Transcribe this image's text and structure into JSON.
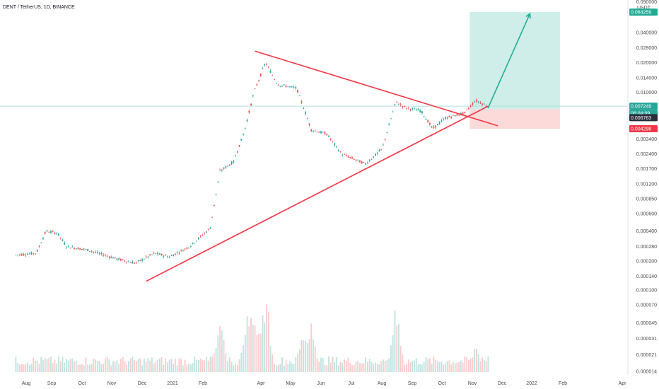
{
  "header": {
    "symbol_line": "DENT / TetherUS, 1D, BINANCE"
  },
  "colors": {
    "up": "#26a69a",
    "down": "#ef5350",
    "trendline": "#f23645",
    "target_zone": "#c7ebe5",
    "stop_zone": "#fbd4d4",
    "arrow": "#22ab94",
    "price_line": "#b2dfdb",
    "axis_text": "#4a4a4a"
  },
  "chart_data": {
    "type": "candlestick",
    "scale": "log",
    "y_unit_label": "USDT",
    "y_ticks": [
      "0.090000",
      "0.064259",
      "0.040000",
      "0.028000",
      "0.020000",
      "0.014000",
      "0.010000",
      "0.007249",
      "0.006763",
      "0.004298",
      "0.003400",
      "0.002400",
      "0.001700",
      "0.001200",
      "0.000850",
      "0.000600",
      "0.000400",
      "0.000280",
      "0.000200",
      "0.000140",
      "0.000100",
      "0.000070",
      "0.000045",
      "0.000031",
      "0.000021",
      "0.000014"
    ],
    "x_ticks": [
      "Aug",
      "Sep",
      "Oct",
      "Nov",
      "Dec",
      "2021",
      "Feb",
      "Apr",
      "May",
      "Jun",
      "Jul",
      "Aug",
      "Sep",
      "Oct",
      "Nov",
      "Dec",
      "2022",
      "Feb",
      "Apr"
    ],
    "price_badges": [
      {
        "label": "0.064259",
        "role": "target",
        "color": "#22ab94"
      },
      {
        "label": "0.007249",
        "role": "last-price",
        "color": "#26a69a"
      },
      {
        "label": "06:04:09",
        "role": "countdown",
        "color": "#26a69a"
      },
      {
        "label": "0.006763",
        "role": "entry",
        "color": "#2a2e39"
      },
      {
        "label": "0.004298",
        "role": "stop",
        "color": "#f23645"
      }
    ],
    "price_path": [
      {
        "d": "2020-07-20",
        "p": 0.00023
      },
      {
        "d": "2020-08-10",
        "p": 0.00024
      },
      {
        "d": "2020-08-20",
        "p": 0.0004
      },
      {
        "d": "2020-09-01",
        "p": 0.00038
      },
      {
        "d": "2020-09-10",
        "p": 0.00028
      },
      {
        "d": "2020-10-01",
        "p": 0.00026
      },
      {
        "d": "2020-11-01",
        "p": 0.00021
      },
      {
        "d": "2020-11-20",
        "p": 0.00019
      },
      {
        "d": "2020-12-10",
        "p": 0.00024
      },
      {
        "d": "2020-12-25",
        "p": 0.00022
      },
      {
        "d": "2021-01-15",
        "p": 0.00028
      },
      {
        "d": "2021-02-05",
        "p": 0.00043
      },
      {
        "d": "2021-02-15",
        "p": 0.0016
      },
      {
        "d": "2021-03-01",
        "p": 0.002
      },
      {
        "d": "2021-03-12",
        "p": 0.004
      },
      {
        "d": "2021-03-22",
        "p": 0.01
      },
      {
        "d": "2021-04-03",
        "p": 0.02
      },
      {
        "d": "2021-04-15",
        "p": 0.012
      },
      {
        "d": "2021-05-05",
        "p": 0.011
      },
      {
        "d": "2021-05-20",
        "p": 0.0042
      },
      {
        "d": "2021-06-05",
        "p": 0.0038
      },
      {
        "d": "2021-06-20",
        "p": 0.0024
      },
      {
        "d": "2021-07-15",
        "p": 0.0019
      },
      {
        "d": "2021-08-01",
        "p": 0.0027
      },
      {
        "d": "2021-08-15",
        "p": 0.008
      },
      {
        "d": "2021-08-25",
        "p": 0.007
      },
      {
        "d": "2021-09-10",
        "p": 0.0065
      },
      {
        "d": "2021-09-22",
        "p": 0.0043
      },
      {
        "d": "2021-10-05",
        "p": 0.0055
      },
      {
        "d": "2021-10-25",
        "p": 0.0062
      },
      {
        "d": "2021-11-05",
        "p": 0.0083
      },
      {
        "d": "2021-11-18",
        "p": 0.007249
      }
    ],
    "volume_peaks": [
      {
        "d": "2021-02-12",
        "v": 0.45
      },
      {
        "d": "2021-02-16",
        "v": 0.6
      },
      {
        "d": "2021-03-15",
        "v": 0.7
      },
      {
        "d": "2021-03-22",
        "v": 0.85
      },
      {
        "d": "2021-04-03",
        "v": 0.95
      },
      {
        "d": "2021-05-12",
        "v": 0.55
      },
      {
        "d": "2021-05-20",
        "v": 0.6
      },
      {
        "d": "2021-08-15",
        "v": 0.75
      },
      {
        "d": "2021-11-05",
        "v": 0.35
      }
    ],
    "trendlines": [
      {
        "name": "upper",
        "from": {
          "d": "2021-03-23",
          "p": 0.026
        },
        "to": {
          "d": "2021-11-28",
          "p": 0.0046
        }
      },
      {
        "name": "lower",
        "from": {
          "d": "2020-12-01",
          "p": 0.000125
        },
        "to": {
          "d": "2021-11-18",
          "p": 0.007249
        }
      }
    ],
    "position": {
      "start": "2021-10-30",
      "end": "2022-01-31",
      "entry": 0.006763,
      "target": 0.064259,
      "stop": 0.004298,
      "arrow_to": {
        "d": "2021-12-31",
        "p": 0.062
      }
    }
  }
}
